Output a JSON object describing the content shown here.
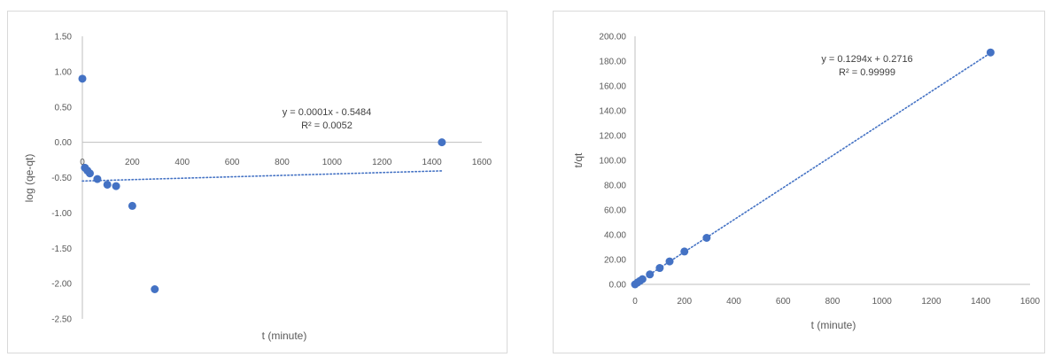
{
  "chart_data": [
    {
      "type": "scatter",
      "xlabel": "t (minute)",
      "ylabel": "log (qe-qt)",
      "xlim": [
        0,
        1600
      ],
      "ylim": [
        -2.5,
        1.5
      ],
      "x_ticks": [
        "0",
        "200",
        "400",
        "600",
        "800",
        "1000",
        "1200",
        "1400",
        "1600"
      ],
      "y_ticks": [
        "1.50",
        "1.00",
        "0.50",
        "0.00",
        "-0.50",
        "-1.00",
        "-1.50",
        "-2.00",
        "-2.50"
      ],
      "grid": false,
      "marker_color": "#4472C4",
      "trendline_color": "#4472C4",
      "points": [
        {
          "x": 0,
          "y": 0.9
        },
        {
          "x": 10,
          "y": -0.36
        },
        {
          "x": 20,
          "y": -0.4
        },
        {
          "x": 30,
          "y": -0.44
        },
        {
          "x": 60,
          "y": -0.52
        },
        {
          "x": 100,
          "y": -0.6
        },
        {
          "x": 135,
          "y": -0.62
        },
        {
          "x": 200,
          "y": -0.9
        },
        {
          "x": 290,
          "y": -2.08
        },
        {
          "x": 1440,
          "y": 0.0
        }
      ],
      "trendline": {
        "slope": 0.0001,
        "intercept": -0.5484,
        "x_from": 0,
        "x_to": 1440
      },
      "equation": "y = 0.0001x - 0.5484",
      "r2": "R² = 0.0052"
    },
    {
      "type": "scatter",
      "xlabel": "t (minute)",
      "ylabel": "t/qt",
      "xlim": [
        0,
        1600
      ],
      "ylim": [
        0,
        200
      ],
      "x_ticks": [
        "0",
        "200",
        "400",
        "600",
        "800",
        "1000",
        "1200",
        "1400",
        "1600"
      ],
      "y_ticks": [
        "200.00",
        "180.00",
        "160.00",
        "140.00",
        "120.00",
        "100.00",
        "80.00",
        "60.00",
        "40.00",
        "20.00",
        "0.00"
      ],
      "grid": false,
      "marker_color": "#4472C4",
      "trendline_color": "#4472C4",
      "points": [
        {
          "x": 0,
          "y": 0.0
        },
        {
          "x": 10,
          "y": 1.5
        },
        {
          "x": 20,
          "y": 2.8
        },
        {
          "x": 30,
          "y": 4.2
        },
        {
          "x": 60,
          "y": 8.0
        },
        {
          "x": 100,
          "y": 13.2
        },
        {
          "x": 140,
          "y": 18.5
        },
        {
          "x": 200,
          "y": 26.5
        },
        {
          "x": 290,
          "y": 37.5
        },
        {
          "x": 1440,
          "y": 187.0
        }
      ],
      "trendline": {
        "slope": 0.1294,
        "intercept": 0.2716,
        "x_from": 0,
        "x_to": 1440
      },
      "equation": "y = 0.1294x + 0.2716",
      "r2": "R² = 0.99999"
    }
  ]
}
